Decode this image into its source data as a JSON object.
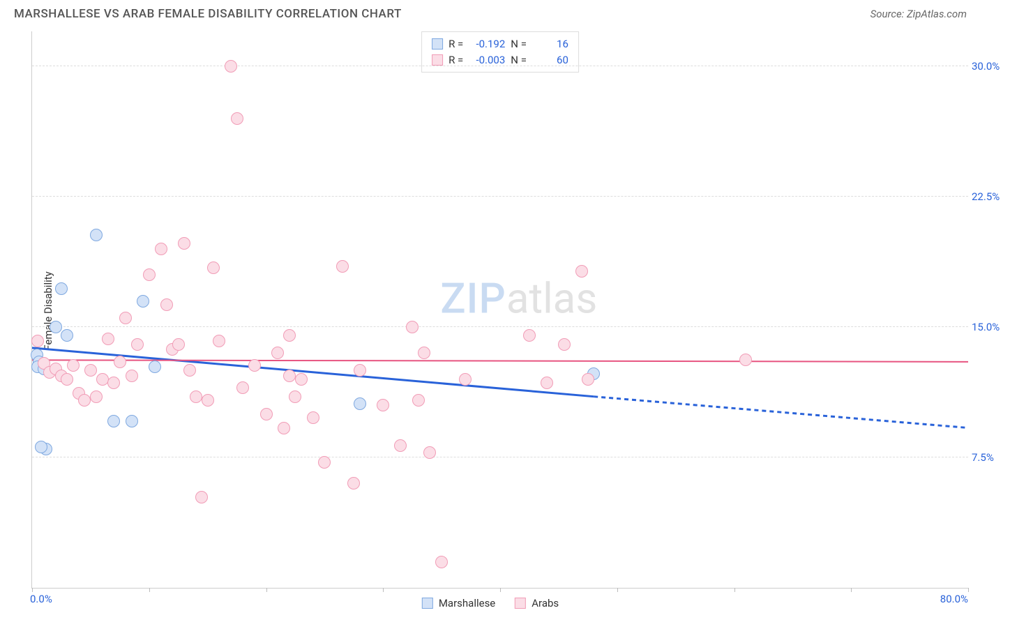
{
  "title": "MARSHALLESE VS ARAB FEMALE DISABILITY CORRELATION CHART",
  "source": "Source: ZipAtlas.com",
  "ylabel": "Female Disability",
  "watermark": {
    "part1": "ZIP",
    "part2": "atlas"
  },
  "chart": {
    "type": "scatter",
    "xlim": [
      0,
      80
    ],
    "ylim": [
      0,
      32
    ],
    "ytick_step": 7.5,
    "yticks": [
      7.5,
      15.0,
      22.5,
      30.0
    ],
    "ytick_labels": [
      "7.5%",
      "15.0%",
      "22.5%",
      "30.0%"
    ],
    "xticks": [
      0,
      10,
      20,
      30,
      40,
      50,
      60,
      70,
      80
    ],
    "xmin_label": "0.0%",
    "xmax_label": "80.0%",
    "background_color": "#ffffff",
    "grid_color": "#dddddd",
    "axis_color": "#cccccc",
    "marker_size": 18,
    "series": [
      {
        "name": "Marshallese",
        "color_fill": "#d3e2f7",
        "color_stroke": "#7ea8e0",
        "R": "-0.192",
        "N": "16",
        "trend": {
          "x1": 0,
          "y1": 13.8,
          "x2_solid": 48,
          "y2_solid": 11.0,
          "x2": 80,
          "y2": 9.2,
          "color": "#2962d9",
          "width": 3
        },
        "points": [
          [
            0.4,
            13.4
          ],
          [
            0.6,
            13.0
          ],
          [
            0.5,
            12.7
          ],
          [
            1.0,
            12.6
          ],
          [
            1.2,
            8.0
          ],
          [
            0.8,
            8.1
          ],
          [
            2.0,
            15.0
          ],
          [
            2.5,
            17.2
          ],
          [
            3.0,
            14.5
          ],
          [
            5.5,
            20.3
          ],
          [
            7.0,
            9.6
          ],
          [
            8.5,
            9.6
          ],
          [
            9.5,
            16.5
          ],
          [
            10.5,
            12.7
          ],
          [
            28.0,
            10.6
          ],
          [
            48.0,
            12.3
          ]
        ]
      },
      {
        "name": "Arabs",
        "color_fill": "#fbdde6",
        "color_stroke": "#f19cb6",
        "R": "-0.003",
        "N": "60",
        "trend": {
          "x1": 0,
          "y1": 13.1,
          "x2_solid": 80,
          "y2_solid": 13.0,
          "x2": 80,
          "y2": 13.0,
          "color": "#e75480",
          "width": 2
        },
        "points": [
          [
            0.5,
            14.2
          ],
          [
            1.0,
            12.9
          ],
          [
            1.5,
            12.4
          ],
          [
            2.0,
            12.6
          ],
          [
            2.5,
            12.2
          ],
          [
            3.0,
            12.0
          ],
          [
            3.5,
            12.8
          ],
          [
            4.0,
            11.2
          ],
          [
            4.5,
            10.8
          ],
          [
            5.0,
            12.5
          ],
          [
            5.5,
            11.0
          ],
          [
            6.0,
            12.0
          ],
          [
            6.5,
            14.3
          ],
          [
            7.0,
            11.8
          ],
          [
            7.5,
            13.0
          ],
          [
            8.0,
            15.5
          ],
          [
            8.5,
            12.2
          ],
          [
            9.0,
            14.0
          ],
          [
            10.0,
            18.0
          ],
          [
            11.0,
            19.5
          ],
          [
            11.5,
            16.3
          ],
          [
            12.0,
            13.7
          ],
          [
            12.5,
            14.0
          ],
          [
            13.0,
            19.8
          ],
          [
            13.5,
            12.5
          ],
          [
            14.0,
            11.0
          ],
          [
            14.5,
            5.2
          ],
          [
            15.0,
            10.8
          ],
          [
            15.5,
            18.4
          ],
          [
            16.0,
            14.2
          ],
          [
            17.0,
            30.0
          ],
          [
            17.5,
            27.0
          ],
          [
            18.0,
            11.5
          ],
          [
            20.0,
            10.0
          ],
          [
            21.0,
            13.5
          ],
          [
            21.5,
            9.2
          ],
          [
            22.0,
            14.5
          ],
          [
            22.5,
            11.0
          ],
          [
            23.0,
            12.0
          ],
          [
            24.0,
            9.8
          ],
          [
            25.0,
            7.2
          ],
          [
            26.5,
            18.5
          ],
          [
            27.5,
            6.0
          ],
          [
            28.0,
            12.5
          ],
          [
            30.0,
            10.5
          ],
          [
            31.5,
            8.2
          ],
          [
            32.5,
            15.0
          ],
          [
            33.0,
            10.8
          ],
          [
            33.5,
            13.5
          ],
          [
            34.0,
            7.8
          ],
          [
            35.0,
            1.5
          ],
          [
            37.0,
            12.0
          ],
          [
            42.5,
            14.5
          ],
          [
            44.0,
            11.8
          ],
          [
            45.5,
            14.0
          ],
          [
            47.0,
            18.2
          ],
          [
            47.5,
            12.0
          ],
          [
            61.0,
            13.1
          ],
          [
            22.0,
            12.2
          ],
          [
            19.0,
            12.8
          ]
        ]
      }
    ]
  },
  "top_legend": {
    "r_label": "R =",
    "n_label": "N ="
  },
  "bottom_legend": {
    "items": [
      "Marshallese",
      "Arabs"
    ]
  }
}
